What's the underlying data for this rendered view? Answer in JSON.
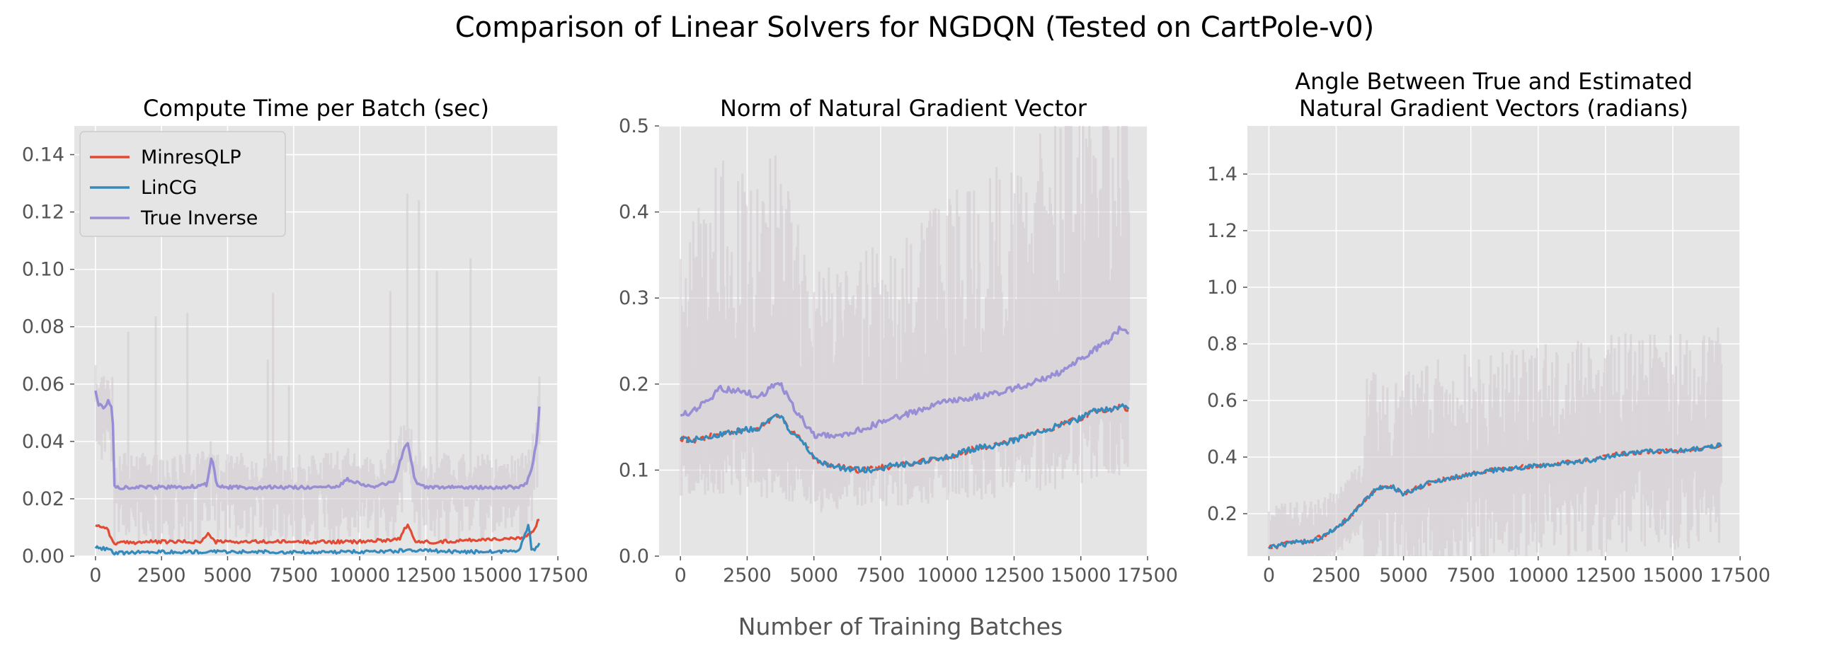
{
  "figure": {
    "title": "Comparison of Linear Solvers for NGDQN (Tested on CartPole-v0)",
    "xlabel": "Number of Training Batches"
  },
  "colors": {
    "MinresQLP": "#E24A33",
    "LinCG": "#348ABD",
    "True Inverse": "#988ED5",
    "axes_bg": "#E5E5E5",
    "grid": "#FFFFFF",
    "band": "#CFC8CF"
  },
  "chart_data": [
    {
      "type": "line",
      "title": "Compute Time per Batch (sec)",
      "xlim": [
        -800,
        17500
      ],
      "ylim": [
        0,
        0.15
      ],
      "xticks": [
        0,
        2500,
        5000,
        7500,
        10000,
        12500,
        15000,
        17500
      ],
      "yticks": [
        0.0,
        0.02,
        0.04,
        0.06,
        0.08,
        0.1,
        0.12,
        0.14
      ],
      "ytick_labels": [
        "0.00",
        "0.02",
        "0.04",
        "0.06",
        "0.08",
        "0.10",
        "0.12",
        "0.14"
      ],
      "grid": true,
      "legend": {
        "position": "top-left",
        "entries": [
          "MinresQLP",
          "LinCG",
          "True Inverse"
        ]
      },
      "series": [
        {
          "name": "MinresQLP",
          "x": [
            0,
            300,
            400,
            600,
            700,
            2000,
            4000,
            4300,
            4500,
            6000,
            8000,
            10000,
            11500,
            11800,
            12100,
            13000,
            15000,
            16000,
            16200,
            16500,
            16800
          ],
          "y": [
            0.011,
            0.01,
            0.0105,
            0.006,
            0.0045,
            0.005,
            0.005,
            0.008,
            0.005,
            0.005,
            0.005,
            0.005,
            0.006,
            0.011,
            0.005,
            0.005,
            0.006,
            0.006,
            0.0065,
            0.008,
            0.013
          ]
        },
        {
          "name": "LinCG",
          "x": [
            0,
            500,
            700,
            2000,
            4000,
            6000,
            8000,
            10000,
            12000,
            14000,
            16000,
            16200,
            16400,
            16500,
            16700,
            16800
          ],
          "y": [
            0.003,
            0.0025,
            0.001,
            0.0015,
            0.0015,
            0.0015,
            0.0015,
            0.0015,
            0.002,
            0.0015,
            0.0015,
            0.006,
            0.011,
            0.002,
            0.003,
            0.004
          ]
        },
        {
          "name": "True Inverse",
          "x": [
            0,
            100,
            300,
            500,
            650,
            700,
            1500,
            2500,
            3500,
            4200,
            4400,
            4600,
            5500,
            6500,
            7500,
            8500,
            9200,
            9500,
            10500,
            11300,
            11600,
            11800,
            12100,
            12500,
            13500,
            14500,
            15500,
            16000,
            16300,
            16500,
            16700,
            16800
          ],
          "y": [
            0.058,
            0.053,
            0.052,
            0.054,
            0.052,
            0.024,
            0.024,
            0.024,
            0.024,
            0.025,
            0.035,
            0.024,
            0.024,
            0.024,
            0.024,
            0.024,
            0.024,
            0.027,
            0.024,
            0.026,
            0.035,
            0.04,
            0.026,
            0.024,
            0.024,
            0.024,
            0.024,
            0.024,
            0.025,
            0.03,
            0.04,
            0.052
          ]
        }
      ]
    },
    {
      "type": "line",
      "title": "Norm of Natural Gradient Vector",
      "xlim": [
        -800,
        17500
      ],
      "ylim": [
        0,
        0.5
      ],
      "xticks": [
        0,
        2500,
        5000,
        7500,
        10000,
        12500,
        15000,
        17500
      ],
      "yticks": [
        0.0,
        0.1,
        0.2,
        0.3,
        0.4,
        0.5
      ],
      "ytick_labels": [
        "0.0",
        "0.1",
        "0.2",
        "0.3",
        "0.4",
        "0.5"
      ],
      "grid": true,
      "series": [
        {
          "name": "MinresQLP",
          "x": [
            0,
            500,
            1500,
            2500,
            3000,
            3500,
            3700,
            4000,
            4500,
            5000,
            5500,
            6000,
            6500,
            7000,
            8000,
            9000,
            10000,
            11000,
            12000,
            13000,
            14000,
            15000,
            15500,
            16000,
            16500,
            16800
          ],
          "y": [
            0.137,
            0.135,
            0.142,
            0.147,
            0.15,
            0.16,
            0.165,
            0.15,
            0.135,
            0.115,
            0.105,
            0.103,
            0.1,
            0.1,
            0.105,
            0.11,
            0.115,
            0.125,
            0.13,
            0.14,
            0.15,
            0.16,
            0.17,
            0.17,
            0.175,
            0.17
          ]
        },
        {
          "name": "LinCG",
          "x": [
            0,
            500,
            1500,
            2500,
            3000,
            3500,
            3700,
            4000,
            4500,
            5000,
            5500,
            6000,
            6500,
            7000,
            8000,
            9000,
            10000,
            11000,
            12000,
            13000,
            14000,
            15000,
            15500,
            16000,
            16500,
            16800
          ],
          "y": [
            0.137,
            0.135,
            0.142,
            0.147,
            0.15,
            0.16,
            0.165,
            0.15,
            0.135,
            0.115,
            0.105,
            0.103,
            0.1,
            0.1,
            0.105,
            0.11,
            0.115,
            0.125,
            0.13,
            0.14,
            0.15,
            0.16,
            0.17,
            0.17,
            0.175,
            0.17
          ]
        },
        {
          "name": "True Inverse",
          "x": [
            0,
            300,
            1000,
            1500,
            2500,
            3000,
            3500,
            3700,
            4200,
            5000,
            6000,
            7000,
            8000,
            9000,
            10000,
            11000,
            12000,
            13000,
            14000,
            15000,
            15500,
            16000,
            16500,
            16800
          ],
          "y": [
            0.165,
            0.165,
            0.18,
            0.195,
            0.19,
            0.185,
            0.2,
            0.203,
            0.175,
            0.14,
            0.14,
            0.15,
            0.16,
            0.17,
            0.18,
            0.185,
            0.19,
            0.2,
            0.21,
            0.23,
            0.24,
            0.25,
            0.265,
            0.26
          ]
        }
      ]
    },
    {
      "type": "line",
      "title": "Angle Between True and Estimated\nNatural Gradient Vectors (radians)",
      "xlim": [
        -800,
        17500
      ],
      "ylim": [
        0.05,
        1.57
      ],
      "xticks": [
        0,
        2500,
        5000,
        7500,
        10000,
        12500,
        15000,
        17500
      ],
      "yticks": [
        0.2,
        0.4,
        0.6,
        0.8,
        1.0,
        1.2,
        1.4
      ],
      "ytick_labels": [
        "0.2",
        "0.4",
        "0.6",
        "0.8",
        "1.0",
        "1.2",
        "1.4"
      ],
      "grid": true,
      "series": [
        {
          "name": "MinresQLP",
          "x": [
            0,
            500,
            1000,
            1500,
            2000,
            2500,
            3000,
            3500,
            4000,
            4500,
            5000,
            5500,
            6000,
            7000,
            8000,
            9000,
            10000,
            11000,
            12000,
            13000,
            14000,
            15000,
            16000,
            16500,
            16800
          ],
          "y": [
            0.08,
            0.09,
            0.1,
            0.1,
            0.12,
            0.15,
            0.19,
            0.24,
            0.29,
            0.3,
            0.27,
            0.29,
            0.31,
            0.33,
            0.35,
            0.36,
            0.37,
            0.38,
            0.39,
            0.41,
            0.42,
            0.42,
            0.43,
            0.44,
            0.44
          ]
        },
        {
          "name": "LinCG",
          "x": [
            0,
            500,
            1000,
            1500,
            2000,
            2500,
            3000,
            3500,
            4000,
            4500,
            5000,
            5500,
            6000,
            7000,
            8000,
            9000,
            10000,
            11000,
            12000,
            13000,
            14000,
            15000,
            16000,
            16500,
            16800
          ],
          "y": [
            0.08,
            0.09,
            0.1,
            0.1,
            0.12,
            0.15,
            0.19,
            0.24,
            0.29,
            0.3,
            0.27,
            0.29,
            0.31,
            0.33,
            0.35,
            0.36,
            0.37,
            0.38,
            0.39,
            0.41,
            0.42,
            0.42,
            0.43,
            0.44,
            0.44
          ]
        }
      ]
    }
  ]
}
